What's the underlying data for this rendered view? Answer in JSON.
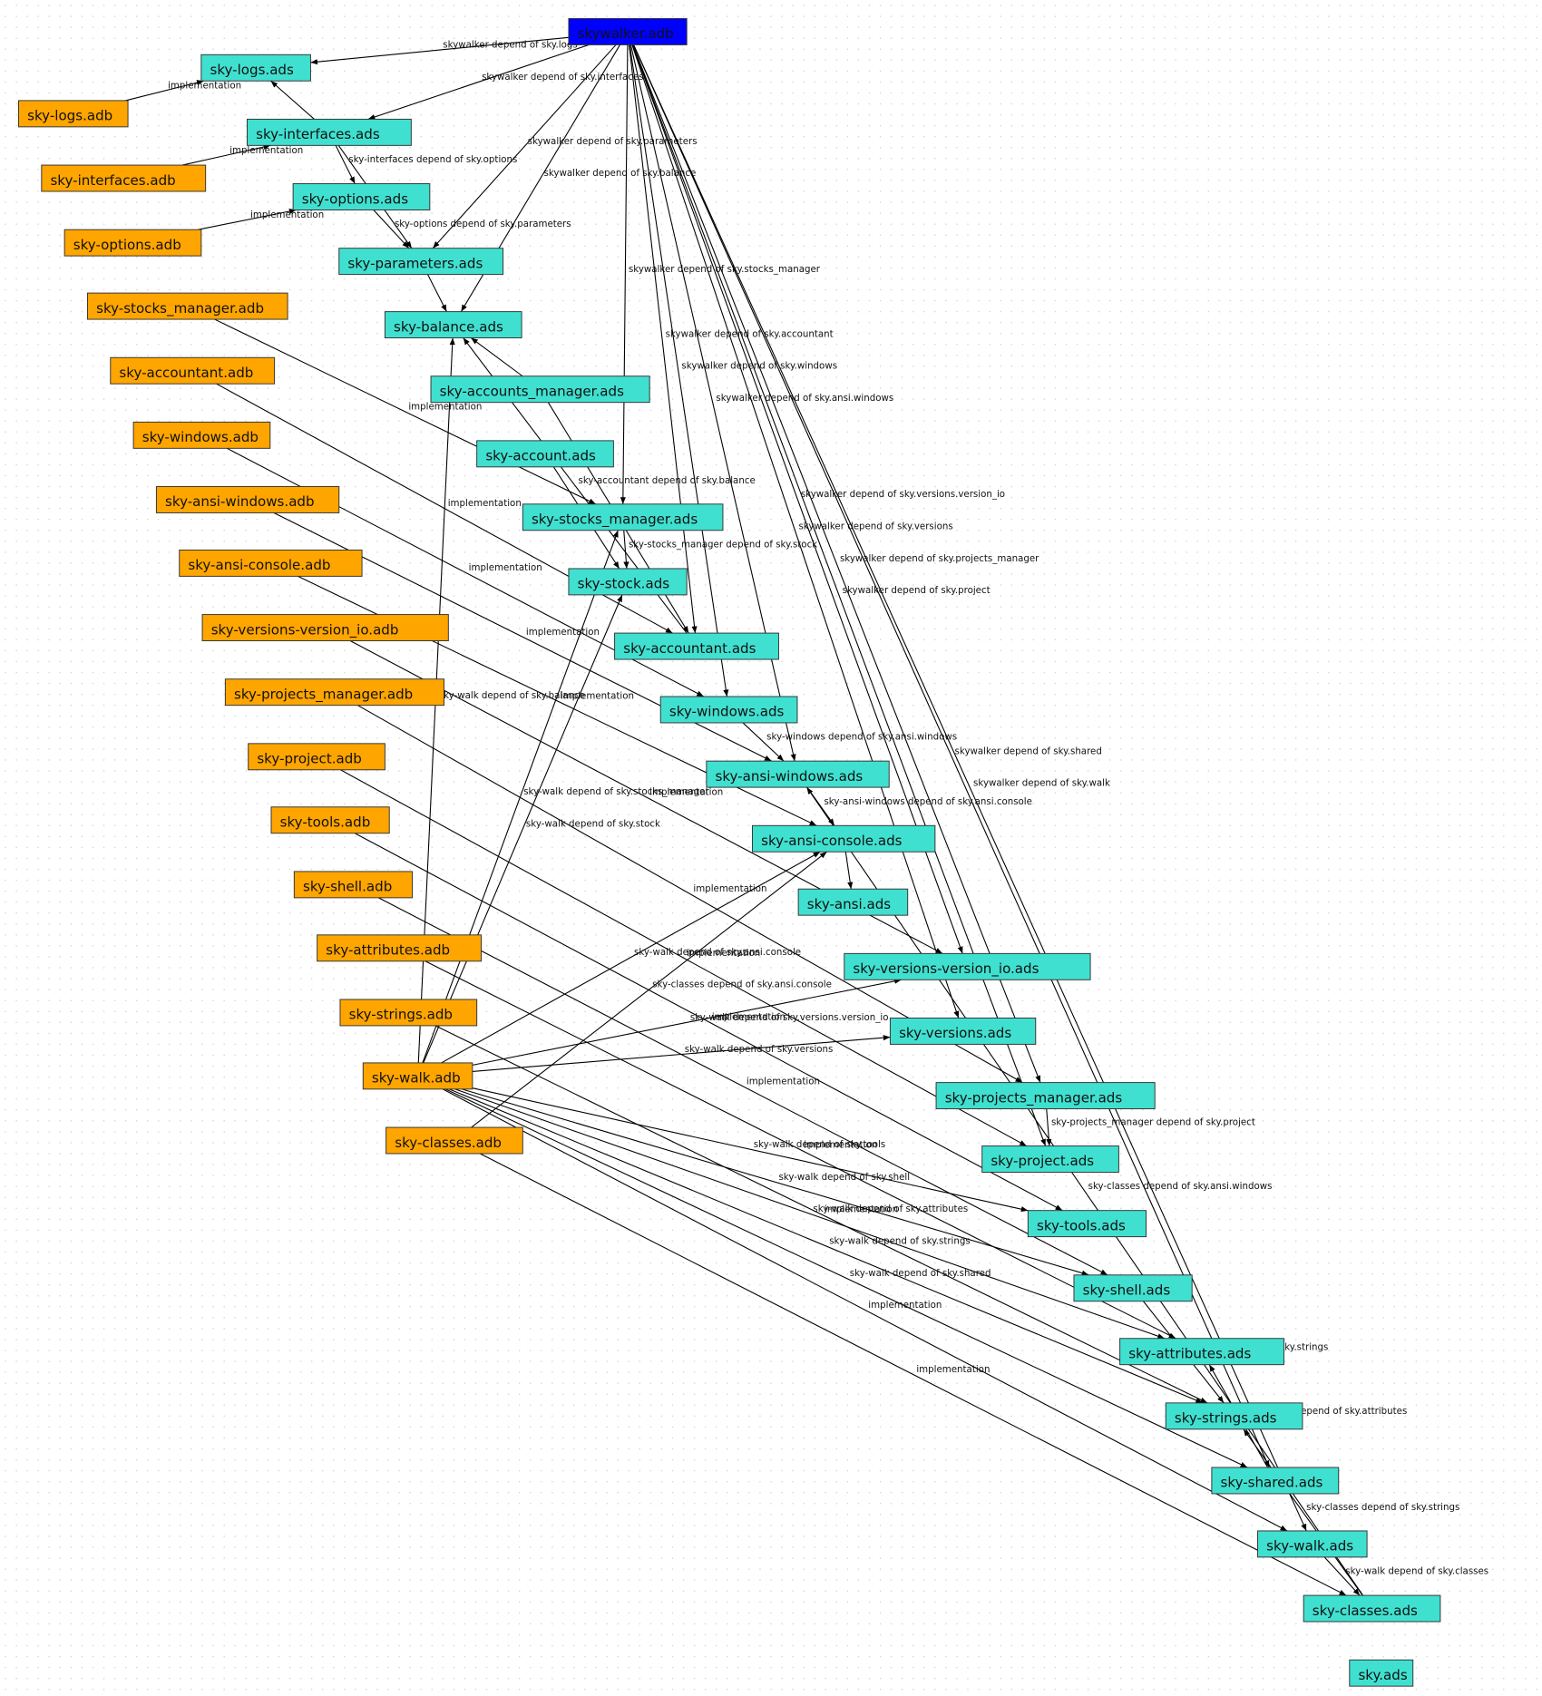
{
  "nodes": [
    {
      "label": "skywalker.adb",
      "color": "#0000ff"
    },
    {
      "label": "sky-logs.ads",
      "color": "#40e0d0"
    },
    {
      "label": "sky-logs.adb",
      "color": "#ffa500"
    },
    {
      "label": "sky-interfaces.ads",
      "color": "#40e0d0"
    },
    {
      "label": "sky-interfaces.adb",
      "color": "#ffa500"
    },
    {
      "label": "sky-options.ads",
      "color": "#40e0d0"
    },
    {
      "label": "sky-options.adb",
      "color": "#ffa500"
    },
    {
      "label": "sky-parameters.ads",
      "color": "#40e0d0"
    },
    {
      "label": "sky-stocks_manager.adb",
      "color": "#ffa500"
    },
    {
      "label": "sky-balance.ads",
      "color": "#40e0d0"
    },
    {
      "label": "sky-accountant.adb",
      "color": "#ffa500"
    },
    {
      "label": "sky-accounts_manager.ads",
      "color": "#40e0d0"
    },
    {
      "label": "sky-windows.adb",
      "color": "#ffa500"
    },
    {
      "label": "sky-account.ads",
      "color": "#40e0d0"
    },
    {
      "label": "sky-ansi-windows.adb",
      "color": "#ffa500"
    },
    {
      "label": "sky-stocks_manager.ads",
      "color": "#40e0d0"
    },
    {
      "label": "sky-ansi-console.adb",
      "color": "#ffa500"
    },
    {
      "label": "sky-stock.ads",
      "color": "#40e0d0"
    },
    {
      "label": "sky-versions-version_io.adb",
      "color": "#ffa500"
    },
    {
      "label": "sky-accountant.ads",
      "color": "#40e0d0"
    },
    {
      "label": "sky-projects_manager.adb",
      "color": "#ffa500"
    },
    {
      "label": "sky-windows.ads",
      "color": "#40e0d0"
    },
    {
      "label": "sky-project.adb",
      "color": "#ffa500"
    },
    {
      "label": "sky-ansi-windows.ads",
      "color": "#40e0d0"
    },
    {
      "label": "sky-tools.adb",
      "color": "#ffa500"
    },
    {
      "label": "sky-ansi-console.ads",
      "color": "#40e0d0"
    },
    {
      "label": "sky-shell.adb",
      "color": "#ffa500"
    },
    {
      "label": "sky-ansi.ads",
      "color": "#40e0d0"
    },
    {
      "label": "sky-attributes.adb",
      "color": "#ffa500"
    },
    {
      "label": "sky-versions-version_io.ads",
      "color": "#40e0d0"
    },
    {
      "label": "sky-strings.adb",
      "color": "#ffa500"
    },
    {
      "label": "sky-versions.ads",
      "color": "#40e0d0"
    },
    {
      "label": "sky-walk.adb",
      "color": "#ffa500"
    },
    {
      "label": "sky-projects_manager.ads",
      "color": "#40e0d0"
    },
    {
      "label": "sky-classes.adb",
      "color": "#ffa500"
    },
    {
      "label": "sky-project.ads",
      "color": "#40e0d0"
    },
    {
      "label": "sky-tools.ads",
      "color": "#40e0d0"
    },
    {
      "label": "sky-shell.ads",
      "color": "#40e0d0"
    },
    {
      "label": "sky-attributes.ads",
      "color": "#40e0d0"
    },
    {
      "label": "sky-strings.ads",
      "color": "#40e0d0"
    },
    {
      "label": "sky-shared.ads",
      "color": "#40e0d0"
    },
    {
      "label": "sky-walk.ads",
      "color": "#40e0d0"
    },
    {
      "label": "sky-classes.ads",
      "color": "#40e0d0"
    },
    {
      "label": "sky.ads",
      "color": "#40e0d0"
    }
  ],
  "edges": [
    {
      "from": "skywalker.adb",
      "to": "sky-logs.ads",
      "label": "skywalker depend of sky.logs"
    },
    {
      "from": "skywalker.adb",
      "to": "sky-interfaces.ads",
      "label": "skywalker depend of sky.interfaces"
    },
    {
      "from": "skywalker.adb",
      "to": "sky-parameters.ads",
      "label": "skywalker depend of sky.parameters"
    },
    {
      "from": "skywalker.adb",
      "to": "sky-balance.ads",
      "label": "skywalker depend of sky.balance"
    },
    {
      "from": "skywalker.adb",
      "to": "sky-stocks_manager.ads",
      "label": "skywalker depend of sky.stocks_manager"
    },
    {
      "from": "skywalker.adb",
      "to": "sky-accountant.ads",
      "label": "skywalker depend of sky.accountant"
    },
    {
      "from": "skywalker.adb",
      "to": "sky-windows.ads",
      "label": "skywalker depend of sky.windows"
    },
    {
      "from": "skywalker.adb",
      "to": "sky-ansi-windows.ads",
      "label": "skywalker depend of sky.ansi.windows"
    },
    {
      "from": "skywalker.adb",
      "to": "sky-versions-version_io.ads",
      "label": "skywalker depend of sky.versions.version_io"
    },
    {
      "from": "skywalker.adb",
      "to": "sky-versions.ads",
      "label": "skywalker depend of sky.versions"
    },
    {
      "from": "skywalker.adb",
      "to": "sky-projects_manager.ads",
      "label": "skywalker depend of sky.projects_manager"
    },
    {
      "from": "skywalker.adb",
      "to": "sky-project.ads",
      "label": "skywalker depend of sky.project"
    },
    {
      "from": "skywalker.adb",
      "to": "sky-shared.ads",
      "label": "skywalker depend of sky.shared"
    },
    {
      "from": "skywalker.adb",
      "to": "sky-walk.ads",
      "label": "skywalker depend of sky.walk"
    },
    {
      "from": "sky-logs.adb",
      "to": "sky-logs.ads",
      "label": "implementation"
    },
    {
      "from": "sky-interfaces.ads",
      "to": "sky-logs.ads"
    },
    {
      "from": "sky-interfaces.adb",
      "to": "sky-interfaces.ads",
      "label": "implementation"
    },
    {
      "from": "sky-interfaces.ads",
      "to": "sky-options.ads",
      "label": "sky-interfaces depend of sky.options"
    },
    {
      "from": "sky-interfaces.ads",
      "to": "sky-parameters.ads"
    },
    {
      "from": "sky-options.ads",
      "to": "sky-parameters.ads",
      "label": "sky-options depend of sky.parameters"
    },
    {
      "from": "sky-options.adb",
      "to": "sky-options.ads",
      "label": "implementation"
    },
    {
      "from": "sky-parameters.ads",
      "to": "sky-balance.ads"
    },
    {
      "from": "sky-stocks_manager.adb",
      "to": "sky-stocks_manager.ads",
      "label": "implementation"
    },
    {
      "from": "sky-accountant.adb",
      "to": "sky-accountant.ads",
      "label": "implementation"
    },
    {
      "from": "sky-windows.adb",
      "to": "sky-windows.ads",
      "label": "implementation"
    },
    {
      "from": "sky-ansi-windows.adb",
      "to": "sky-ansi-windows.ads",
      "label": "implementation"
    },
    {
      "from": "sky-ansi-console.adb",
      "to": "sky-ansi-console.ads",
      "label": "implementation"
    },
    {
      "from": "sky-accounts_manager.ads",
      "to": "sky-balance.ads"
    },
    {
      "from": "sky-accounts_manager.ads",
      "to": "sky-accountant.ads"
    },
    {
      "from": "sky-account.ads",
      "to": "sky-stock.ads"
    },
    {
      "from": "sky-accountant.ads",
      "to": "sky-balance.ads",
      "label": "sky-accountant depend of sky.balance"
    },
    {
      "from": "sky-stocks_manager.ads",
      "to": "sky-stock.ads",
      "label": "sky-stocks_manager depend of sky.stock"
    },
    {
      "from": "sky-windows.ads",
      "to": "sky-ansi-windows.ads",
      "label": "sky-windows depend of sky.ansi.windows"
    },
    {
      "from": "sky-ansi-windows.ads",
      "to": "sky-ansi-console.ads",
      "label": "sky-ansi-windows depend of sky.ansi.console"
    },
    {
      "from": "sky-ansi-console.ads",
      "to": "sky-ansi.ads"
    },
    {
      "from": "sky-versions-version_io.adb",
      "to": "sky-versions-version_io.ads",
      "label": "implementation"
    },
    {
      "from": "sky-projects_manager.adb",
      "to": "sky-projects_manager.ads",
      "label": "implementation"
    },
    {
      "from": "sky-project.adb",
      "to": "sky-project.ads",
      "label": "implementation"
    },
    {
      "from": "sky-tools.adb",
      "to": "sky-tools.ads",
      "label": "implementation"
    },
    {
      "from": "sky-shell.adb",
      "to": "sky-shell.ads",
      "label": "implementation"
    },
    {
      "from": "sky-attributes.adb",
      "to": "sky-attributes.ads",
      "label": "implementation"
    },
    {
      "from": "sky-strings.adb",
      "to": "sky-strings.ads",
      "label": "implementation"
    },
    {
      "from": "sky-walk.adb",
      "to": "sky-balance.ads",
      "label": "sky-walk depend of sky.balance"
    },
    {
      "from": "sky-walk.adb",
      "to": "sky-stocks_manager.ads",
      "label": "sky-walk depend of sky.stocks_manager"
    },
    {
      "from": "sky-walk.adb",
      "to": "sky-stock.ads",
      "label": "sky-walk depend of sky.stock"
    },
    {
      "from": "sky-walk.adb",
      "to": "sky-ansi-console.ads",
      "label": "sky-walk depend of sky.ansi.console"
    },
    {
      "from": "sky-walk.adb",
      "to": "sky-versions-version_io.ads",
      "label": "sky-walk depend of sky.versions.version_io"
    },
    {
      "from": "sky-walk.adb",
      "to": "sky-versions.ads",
      "label": "sky-walk depend of sky.versions"
    },
    {
      "from": "sky-walk.adb",
      "to": "sky-tools.ads",
      "label": "sky-walk depend of sky.tools"
    },
    {
      "from": "sky-walk.adb",
      "to": "sky-shell.ads",
      "label": "sky-walk depend of sky.shell"
    },
    {
      "from": "sky-walk.adb",
      "to": "sky-attributes.ads",
      "label": "sky-walk depend of sky.attributes"
    },
    {
      "from": "sky-walk.adb",
      "to": "sky-strings.ads",
      "label": "sky-walk depend of sky.strings"
    },
    {
      "from": "sky-walk.adb",
      "to": "sky-shared.ads",
      "label": "sky-walk depend of sky.shared"
    },
    {
      "from": "sky-walk.adb",
      "to": "sky-walk.ads",
      "label": "implementation"
    },
    {
      "from": "sky-classes.adb",
      "to": "sky-ansi-console.ads",
      "label": "sky-classes depend of sky.ansi.console"
    },
    {
      "from": "sky-classes.adb",
      "to": "sky-classes.ads",
      "label": "implementation"
    },
    {
      "from": "sky-projects_manager.ads",
      "to": "sky-project.ads",
      "label": "sky-projects_manager depend of sky.project"
    },
    {
      "from": "sky-classes.ads",
      "to": "sky-ansi-windows.ads",
      "label": "sky-classes depend of sky.ansi.windows"
    },
    {
      "from": "sky-shell.ads",
      "to": "sky-strings.ads",
      "label": "sky-shell depend of sky.strings"
    },
    {
      "from": "sky-shared.ads",
      "to": "sky-attributes.ads",
      "label": "sky-shared depend of sky.attributes"
    },
    {
      "from": "sky-classes.ads",
      "to": "sky-strings.ads",
      "label": "sky-classes depend of sky.strings"
    },
    {
      "from": "sky-walk.ads",
      "to": "sky-classes.ads",
      "label": "sky-walk depend of sky.classes"
    }
  ]
}
